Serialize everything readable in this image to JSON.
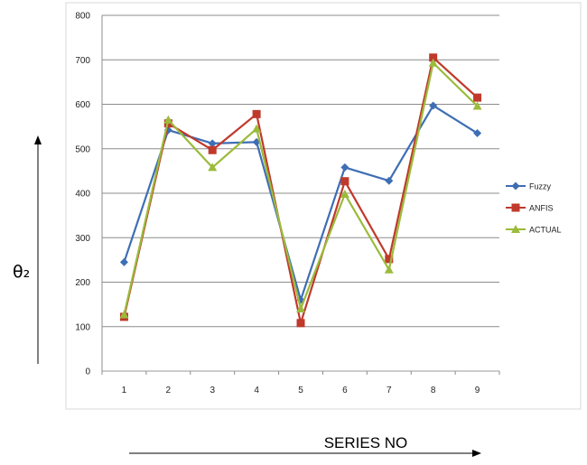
{
  "chart_data": {
    "type": "line",
    "categories": [
      "1",
      "2",
      "3",
      "4",
      "5",
      "6",
      "7",
      "8",
      "9"
    ],
    "ylim": [
      0,
      800
    ],
    "yticks": [
      "0",
      "100",
      "200",
      "300",
      "400",
      "500",
      "600",
      "700",
      "800"
    ],
    "xlabel": "SERIES NO",
    "ylabel": "θ₂",
    "grid": true,
    "legend_position": "right",
    "series": [
      {
        "name": "Fuzzy",
        "color": "#3e6eb4",
        "marker": "diamond",
        "values": [
          245,
          542,
          512,
          515,
          160,
          458,
          428,
          597,
          535
        ]
      },
      {
        "name": "ANFIS",
        "color": "#c0392b",
        "marker": "square",
        "values": [
          122,
          557,
          497,
          578,
          108,
          427,
          252,
          705,
          615
        ]
      },
      {
        "name": "ACTUAL",
        "color": "#9bbb3b",
        "marker": "triangle",
        "values": [
          127,
          565,
          458,
          545,
          140,
          398,
          228,
          693,
          596
        ]
      }
    ]
  }
}
